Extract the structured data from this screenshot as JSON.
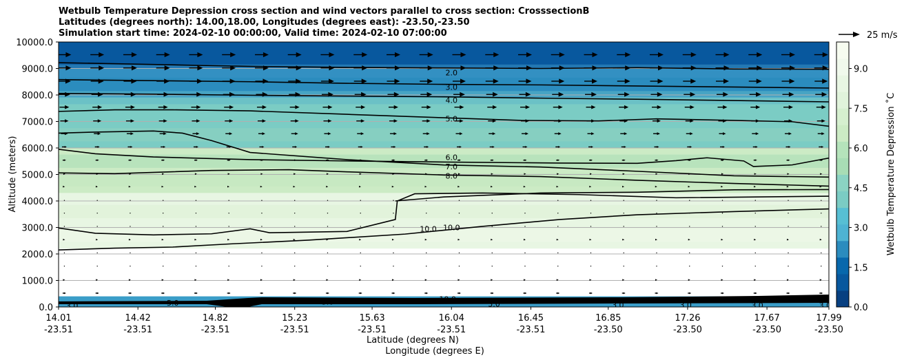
{
  "chart_data": {
    "type": "contour",
    "title_lines": [
      "Wetbulb Temperature Depression cross section and wind vectors parallel to cross section: CrosssectionB",
      "Latitudes (degrees north): 14.00,18.00, Longitudes (degrees east): -23.50,-23.50",
      "Simulation start time: 2024-02-10 00:00:00, Valid time: 2024-02-10 07:00:00"
    ],
    "xlabel_lat": "Latitude (degrees N)",
    "xlabel_lon": "Longitude (degrees E)",
    "ylabel": "Altitude (meters)",
    "ylim": [
      0,
      10000
    ],
    "y_ticks": [
      "0.0",
      "1000.0",
      "2000.0",
      "3000.0",
      "4000.0",
      "5000.0",
      "6000.0",
      "7000.0",
      "8000.0",
      "9000.0",
      "10000.0"
    ],
    "x_ticks": [
      {
        "lat": "14.01",
        "lon": "-23.51"
      },
      {
        "lat": "14.42",
        "lon": "-23.51"
      },
      {
        "lat": "14.82",
        "lon": "-23.51"
      },
      {
        "lat": "15.23",
        "lon": "-23.51"
      },
      {
        "lat": "15.63",
        "lon": "-23.51"
      },
      {
        "lat": "16.04",
        "lon": "-23.51"
      },
      {
        "lat": "16.45",
        "lon": "-23.51"
      },
      {
        "lat": "16.85",
        "lon": "-23.50"
      },
      {
        "lat": "17.26",
        "lon": "-23.50"
      },
      {
        "lat": "17.67",
        "lon": "-23.50"
      },
      {
        "lat": "17.99",
        "lon": "-23.50"
      }
    ],
    "colorbar": {
      "label": "Wetbulb Temperature Depression ˚C",
      "min": 0,
      "max": 10,
      "ticks": [
        "0.0",
        "1.5",
        "3.0",
        "4.5",
        "6.0",
        "7.5",
        "9.0"
      ],
      "colors": [
        "#084081",
        "#08589e",
        "#0868ac",
        "#2b8cbe",
        "#4eb3d3",
        "#57bfd4",
        "#7bccc4",
        "#8bd3c3",
        "#a8ddb5",
        "#b5e3bb",
        "#ccebc5",
        "#d5efcf",
        "#e0f3db",
        "#e8f6e3",
        "#f0f9ec",
        "#f7fcf0"
      ]
    },
    "quiver_key": {
      "label": "25 m/s"
    },
    "contour_labels": [
      {
        "text": "2.0",
        "lat": 16.04,
        "alt": 8850
      },
      {
        "text": "3.0",
        "lat": 16.04,
        "alt": 8300
      },
      {
        "text": "4.0",
        "lat": 16.04,
        "alt": 7800
      },
      {
        "text": "5.0",
        "lat": 16.04,
        "alt": 7100
      },
      {
        "text": "6.0",
        "lat": 16.04,
        "alt": 5650
      },
      {
        "text": "7.0",
        "lat": 16.04,
        "alt": 5300
      },
      {
        "text": "8.0",
        "lat": 16.04,
        "alt": 4950
      },
      {
        "text": "10.0",
        "lat": 15.92,
        "alt": 2950
      },
      {
        "text": "10.0",
        "lat": 16.04,
        "alt": 3000
      },
      {
        "text": "10.0",
        "lat": 16.02,
        "alt": 300
      },
      {
        "text": "3.0",
        "lat": 15.4,
        "alt": 200
      },
      {
        "text": "3.0",
        "lat": 16.26,
        "alt": 120
      },
      {
        "text": "3.0",
        "lat": 16.9,
        "alt": 80
      },
      {
        "text": "3.0",
        "lat": 17.25,
        "alt": 80
      },
      {
        "text": "3.0",
        "lat": 17.62,
        "alt": 60
      },
      {
        "text": "3.0",
        "lat": 17.97,
        "alt": 60
      },
      {
        "text": "3.0",
        "lat": 14.87,
        "alt": 150
      },
      {
        "text": "5.0",
        "lat": 14.6,
        "alt": 150
      },
      {
        "text": "3.0",
        "lat": 14.08,
        "alt": 50
      }
    ],
    "contours": [
      {
        "level": 2.0,
        "points": [
          [
            14.01,
            9220
          ],
          [
            14.5,
            9150
          ],
          [
            15.0,
            9080
          ],
          [
            15.5,
            9040
          ],
          [
            16.0,
            9020
          ],
          [
            16.5,
            9000
          ],
          [
            17.0,
            9030
          ],
          [
            17.5,
            8980
          ],
          [
            17.99,
            8970
          ]
        ]
      },
      {
        "level": 3.0,
        "points": [
          [
            14.01,
            8580
          ],
          [
            14.5,
            8540
          ],
          [
            15.0,
            8500
          ],
          [
            15.5,
            8440
          ],
          [
            16.0,
            8400
          ],
          [
            16.5,
            8380
          ],
          [
            17.0,
            8340
          ],
          [
            17.5,
            8300
          ],
          [
            17.99,
            8260
          ]
        ]
      },
      {
        "level": 4.0,
        "points": [
          [
            14.01,
            8060
          ],
          [
            14.5,
            8030
          ],
          [
            15.0,
            7990
          ],
          [
            15.5,
            7960
          ],
          [
            16.0,
            7930
          ],
          [
            16.5,
            7880
          ],
          [
            17.0,
            7840
          ],
          [
            17.5,
            7790
          ],
          [
            17.99,
            7740
          ]
        ]
      },
      {
        "level": 5.0,
        "points": [
          [
            14.01,
            7380
          ],
          [
            14.3,
            7440
          ],
          [
            14.6,
            7440
          ],
          [
            15.0,
            7400
          ],
          [
            15.5,
            7270
          ],
          [
            16.0,
            7140
          ],
          [
            16.4,
            7040
          ],
          [
            16.8,
            7020
          ],
          [
            17.1,
            7100
          ],
          [
            17.5,
            7040
          ],
          [
            17.8,
            6990
          ],
          [
            17.99,
            6820
          ]
        ]
      },
      {
        "level": 6.0,
        "points": [
          [
            14.01,
            5950
          ],
          [
            14.2,
            5780
          ],
          [
            14.5,
            5660
          ],
          [
            15.0,
            5560
          ],
          [
            15.5,
            5510
          ],
          [
            16.0,
            5470
          ],
          [
            16.6,
            5430
          ],
          [
            17.0,
            5420
          ],
          [
            17.2,
            5520
          ],
          [
            17.36,
            5630
          ],
          [
            17.55,
            5510
          ],
          [
            17.6,
            5300
          ],
          [
            17.8,
            5360
          ],
          [
            17.99,
            5620
          ]
        ]
      },
      {
        "level": 7.0,
        "points": [
          [
            14.01,
            6560
          ],
          [
            14.2,
            6600
          ],
          [
            14.5,
            6640
          ],
          [
            14.65,
            6560
          ],
          [
            14.8,
            6280
          ],
          [
            15.0,
            5830
          ],
          [
            15.5,
            5560
          ],
          [
            16.0,
            5360
          ],
          [
            16.5,
            5280
          ],
          [
            17.0,
            5120
          ],
          [
            17.5,
            4950
          ],
          [
            17.99,
            4900
          ]
        ]
      },
      {
        "level": 8.0,
        "points": [
          [
            14.01,
            5060
          ],
          [
            14.3,
            5030
          ],
          [
            14.8,
            5150
          ],
          [
            15.2,
            5180
          ],
          [
            15.5,
            5100
          ],
          [
            16.0,
            4980
          ],
          [
            16.5,
            4920
          ],
          [
            17.0,
            4780
          ],
          [
            17.5,
            4660
          ],
          [
            17.99,
            4560
          ]
        ]
      },
      {
        "level": 9.0,
        "points": [
          [
            15.75,
            4000
          ],
          [
            16.0,
            4150
          ],
          [
            16.5,
            4300
          ],
          [
            17.0,
            4330
          ],
          [
            17.5,
            4420
          ],
          [
            17.99,
            4430
          ]
        ]
      },
      {
        "level": 10.0,
        "points": [
          [
            14.01,
            2980
          ],
          [
            14.2,
            2780
          ],
          [
            14.5,
            2720
          ],
          [
            14.8,
            2760
          ],
          [
            15.0,
            2950
          ],
          [
            15.1,
            2800
          ],
          [
            15.5,
            2850
          ],
          [
            15.75,
            3300
          ],
          [
            15.76,
            4000
          ],
          [
            15.85,
            4270
          ],
          [
            16.2,
            4300
          ],
          [
            16.7,
            4240
          ],
          [
            17.2,
            4120
          ],
          [
            17.99,
            4180
          ]
        ]
      },
      {
        "level": 10.0,
        "points": [
          [
            14.01,
            2150
          ],
          [
            14.3,
            2220
          ],
          [
            14.6,
            2260
          ],
          [
            14.9,
            2380
          ],
          [
            15.3,
            2520
          ],
          [
            15.8,
            2750
          ],
          [
            16.2,
            3040
          ],
          [
            16.6,
            3300
          ],
          [
            17.0,
            3480
          ],
          [
            17.5,
            3600
          ],
          [
            17.99,
            3700
          ]
        ]
      }
    ],
    "shading": [
      {
        "band": "top-dark",
        "alt_from": 10000,
        "alt_to": 9000,
        "color": "#08589e"
      },
      {
        "band": "upper-blue",
        "alt_from": 9000,
        "alt_to": 7900,
        "color": "#2b8cbe"
      },
      {
        "band": "teal",
        "alt_from": 7900,
        "alt_to": 6000,
        "color": "#7bccc4"
      },
      {
        "band": "light-green",
        "alt_from": 6000,
        "alt_to": 4300,
        "color": "#ccebc5"
      },
      {
        "band": "pale",
        "alt_from": 4300,
        "alt_to": 2200,
        "color": "#e8f6e3"
      },
      {
        "band": "white",
        "alt_from": 2200,
        "alt_to": 400,
        "color": "#ffffff"
      },
      {
        "band": "surface",
        "alt_from": 400,
        "alt_to": 0,
        "color": "#3a9dc8"
      }
    ],
    "wind_vectors": {
      "lat_step": 0.17,
      "rows": [
        {
          "alt": 9520,
          "u": 1.0
        },
        {
          "alt": 9020,
          "u": 1.0
        },
        {
          "alt": 8520,
          "u": 0.95
        },
        {
          "alt": 8020,
          "u": 0.85
        },
        {
          "alt": 7540,
          "u": 0.7
        },
        {
          "alt": 7020,
          "u": 0.6
        },
        {
          "alt": 6540,
          "u": 0.5
        },
        {
          "alt": 6040,
          "u": 0.35
        },
        {
          "alt": 5540,
          "u": 0.25
        },
        {
          "alt": 5020,
          "u": 0.15
        },
        {
          "alt": 4540,
          "u": 0.08
        },
        {
          "alt": 4020,
          "u": 0.04
        },
        {
          "alt": 3540,
          "u": 0.03
        },
        {
          "alt": 3040,
          "u": 0.05
        },
        {
          "alt": 2540,
          "u": 0.1
        },
        {
          "alt": 2040,
          "u": 0.04
        },
        {
          "alt": 1540,
          "u": 0.03
        },
        {
          "alt": 1020,
          "u": 0.1
        },
        {
          "alt": 520,
          "u": 0.25
        }
      ]
    }
  }
}
